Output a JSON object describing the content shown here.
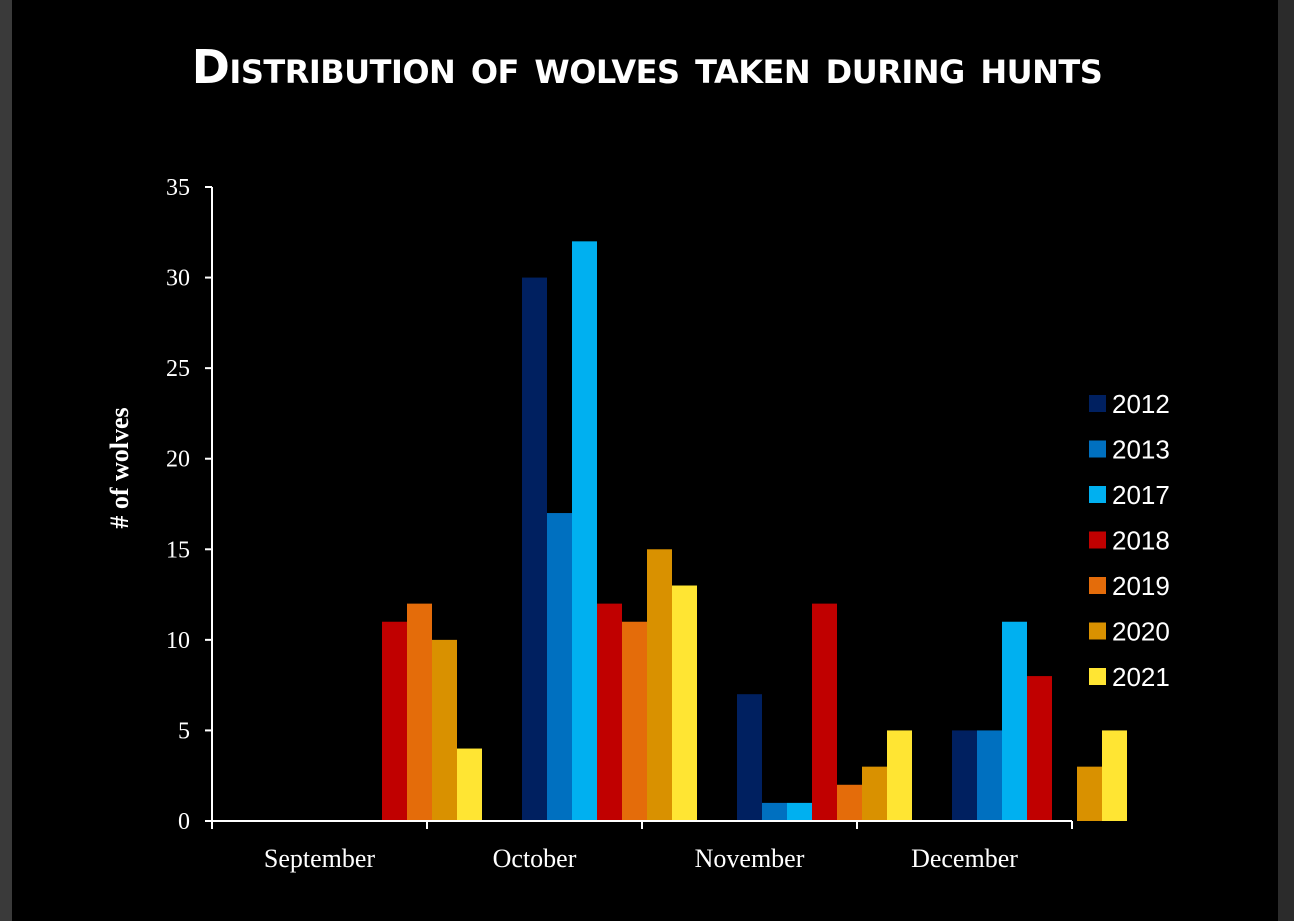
{
  "chart_data": {
    "type": "bar",
    "title": "Distribution of wolves taken during hunts",
    "ylabel": "# of wolves",
    "xlabel": "",
    "ylim": [
      0,
      35
    ],
    "yticks": [
      0,
      5,
      10,
      15,
      20,
      25,
      30,
      35
    ],
    "categories": [
      "September",
      "October",
      "November",
      "December"
    ],
    "series": [
      {
        "name": "2012",
        "color": "#002060",
        "values": [
          0,
          30,
          7,
          5
        ]
      },
      {
        "name": "2013",
        "color": "#0070C0",
        "values": [
          0,
          17,
          1,
          5
        ]
      },
      {
        "name": "2017",
        "color": "#00B0F0",
        "values": [
          0,
          32,
          1,
          11
        ]
      },
      {
        "name": "2018",
        "color": "#C00000",
        "values": [
          11,
          12,
          12,
          8
        ]
      },
      {
        "name": "2019",
        "color": "#E46C0A",
        "values": [
          12,
          11,
          2,
          0
        ]
      },
      {
        "name": "2020",
        "color": "#D99100",
        "values": [
          10,
          15,
          3,
          3
        ]
      },
      {
        "name": "2021",
        "color": "#FFE533",
        "values": [
          4,
          13,
          5,
          5
        ]
      }
    ],
    "legend": "right",
    "grid": false
  }
}
